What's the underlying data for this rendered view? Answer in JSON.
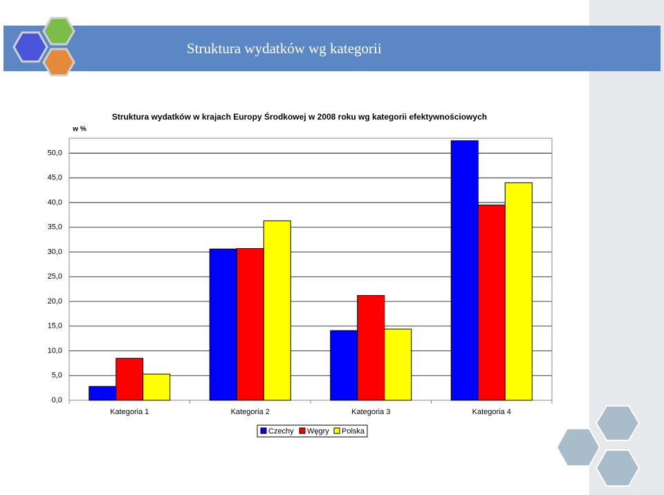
{
  "slide_title": "Struktura wydatków wg kategorii",
  "chart_data": {
    "type": "bar",
    "title": "Struktura wydatków w krajach Europy Środkowej w 2008 roku wg kategorii efektywnościowych",
    "ylabel": "w %",
    "categories": [
      "Kategoria 1",
      "Kategoria 2",
      "Kategoria 3",
      "Kategoria 4"
    ],
    "series": [
      {
        "name": "Czechy",
        "color": "#0000ff",
        "values": [
          2.8,
          30.6,
          14.1,
          52.5
        ]
      },
      {
        "name": "Węgry",
        "color": "#ff0000",
        "values": [
          8.5,
          30.7,
          21.2,
          39.5
        ]
      },
      {
        "name": "Polska",
        "color": "#ffff00",
        "values": [
          5.3,
          36.3,
          14.4,
          44.0
        ]
      }
    ],
    "ylim": [
      0,
      53
    ],
    "yticks": [
      {
        "value": 0,
        "label": "0,0"
      },
      {
        "value": 5,
        "label": "5,0"
      },
      {
        "value": 10,
        "label": "10,0"
      },
      {
        "value": 15,
        "label": "15,0"
      },
      {
        "value": 20,
        "label": "20,0"
      },
      {
        "value": 25,
        "label": "25,0"
      },
      {
        "value": 30,
        "label": "30,0"
      },
      {
        "value": 35,
        "label": "35,0"
      },
      {
        "value": 40,
        "label": "40,0"
      },
      {
        "value": 45,
        "label": "45,0"
      },
      {
        "value": 50,
        "label": "50,0"
      }
    ],
    "grid": true,
    "legend": "bottom"
  }
}
